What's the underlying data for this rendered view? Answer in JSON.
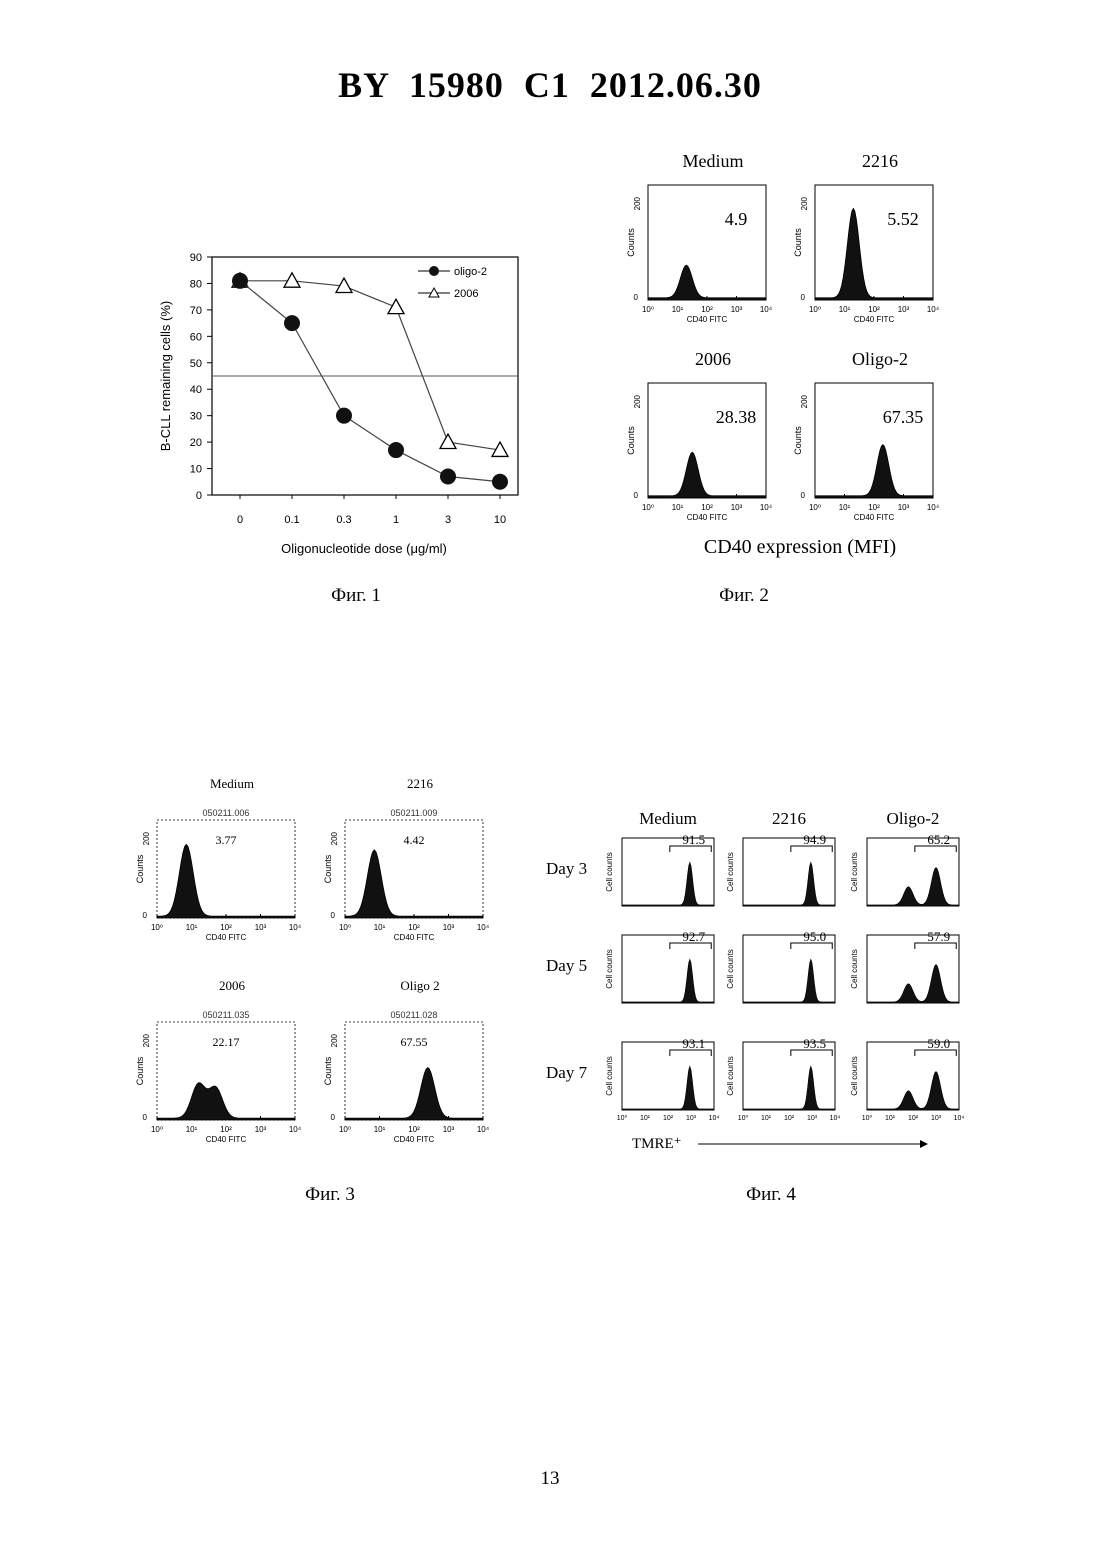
{
  "header": {
    "title": "BY  15980  C1  2012.06.30"
  },
  "page_number": "13",
  "figures": [
    {
      "caption": "Фиг. 1"
    },
    {
      "caption": "Фиг. 2"
    },
    {
      "caption": "Фиг. 3"
    },
    {
      "caption": "Фиг. 4"
    }
  ],
  "chart_data": [
    {
      "type": "line",
      "ylabel": "B-CLL remaining cells (%)",
      "xlabel": "Oligonucleotide dose (μg/ml)",
      "categories": [
        "0",
        "0.1",
        "0.3",
        "1",
        "3",
        "10"
      ],
      "ylim": [
        0,
        90
      ],
      "yticks": [
        "0",
        "10",
        "20",
        "30",
        "40",
        "50",
        "60",
        "70",
        "80",
        "90"
      ],
      "reference_line": 45,
      "legend_position": "top-right",
      "series": [
        {
          "name": "oligo-2",
          "marker": "filled-circle",
          "values": [
            81,
            65,
            30,
            17,
            7,
            5
          ]
        },
        {
          "name": "2006",
          "marker": "open-triangle",
          "values": [
            81,
            81,
            79,
            71,
            20,
            17
          ]
        }
      ]
    },
    {
      "type": "histogram",
      "footer_label": "CD40 expression (MFI)",
      "panels": [
        {
          "title": "Medium",
          "value": "4.9",
          "ymax_label": "200",
          "ylabel": "Counts",
          "xlabel": "CD40 FITC",
          "peaks": [
            [
              1.3,
              0.3
            ]
          ]
        },
        {
          "title": "2216",
          "value": "5.52",
          "ymax_label": "200",
          "ylabel": "Counts",
          "xlabel": "CD40 FITC",
          "peaks": [
            [
              1.3,
              0.82
            ]
          ]
        },
        {
          "title": "2006",
          "value": "28.38",
          "ymax_label": "200",
          "ylabel": "Counts",
          "xlabel": "CD40 FITC",
          "peaks": [
            [
              1.5,
              0.4
            ]
          ]
        },
        {
          "title": "Oligo-2",
          "value": "67.35",
          "ymax_label": "200",
          "ylabel": "Counts",
          "xlabel": "CD40 FITC",
          "peaks": [
            [
              2.3,
              0.47
            ]
          ]
        }
      ]
    },
    {
      "type": "histogram",
      "panels": [
        {
          "title": "Medium",
          "file": "050211.006",
          "value": "3.77",
          "ymax_label": "200",
          "ylabel": "Counts",
          "xlabel": "CD40 FITC",
          "peaks": [
            [
              0.85,
              0.78
            ]
          ]
        },
        {
          "title": "2216",
          "file": "050211.009",
          "value": "4.42",
          "ymax_label": "200",
          "ylabel": "Counts",
          "xlabel": "CD40 FITC",
          "peaks": [
            [
              0.85,
              0.72
            ]
          ]
        },
        {
          "title": "2006",
          "file": "050211.035",
          "value": "22.17",
          "ymax_label": "200",
          "ylabel": "Counts",
          "xlabel": "CD40 FITC",
          "peaks": [
            [
              1.2,
              0.37
            ],
            [
              1.7,
              0.33
            ]
          ]
        },
        {
          "title": "Oligo 2",
          "file": "050211.028",
          "value": "67.55",
          "ymax_label": "200",
          "ylabel": "Counts",
          "xlabel": "CD40 FITC",
          "peaks": [
            [
              2.4,
              0.55
            ]
          ]
        }
      ]
    },
    {
      "type": "histogram",
      "columns": [
        "Medium",
        "2216",
        "Oligo-2"
      ],
      "rows": [
        "Day 3",
        "Day 5",
        "Day 7"
      ],
      "ylabel": "Cell counts",
      "xlabel": "TMRE⁺",
      "values": [
        [
          "91.5",
          "94.9",
          "65.2"
        ],
        [
          "92.7",
          "95.0",
          "57.9"
        ],
        [
          "93.1",
          "93.5",
          "59.0"
        ]
      ]
    }
  ]
}
